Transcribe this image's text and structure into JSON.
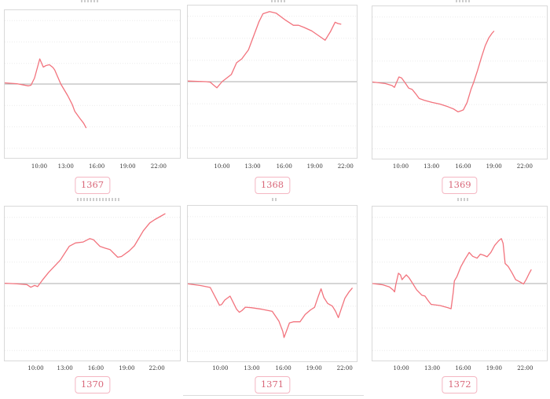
{
  "page": {
    "background": "#ffffff",
    "note": "grid of six mini time-series charts, each with an id badge below; chart titles above plots are rendered too small to be legible",
    "illegible_titles": true
  },
  "colors": {
    "line": "#f2737d",
    "zero_line": "#adadad",
    "grid": "#ececec",
    "plot_border": "#d9d9d9",
    "tick_text": "#333333",
    "badge_text": "#d9687a",
    "badge_border": "#f4b6c2",
    "title_smudge": "#c4c4c4",
    "divider": "#dcdcdc",
    "page_bg": "#ffffff"
  },
  "chart_data": [
    {
      "type": "line",
      "label": "1367",
      "x_tick_labels": [
        "10:00",
        "13:00",
        "16:00",
        "19:00",
        "22:00"
      ],
      "x_tick_pos_pct": [
        20,
        35,
        52.5,
        70,
        87.5
      ],
      "ylabel": "",
      "baseline_value": 0,
      "grid": "horizontal-dotted",
      "points": [
        [
          0,
          0.8
        ],
        [
          7,
          0.2
        ],
        [
          13.5,
          -1.2
        ],
        [
          15,
          -0.8
        ],
        [
          17,
          4
        ],
        [
          20,
          17
        ],
        [
          22,
          11.5
        ],
        [
          23.5,
          12.5
        ],
        [
          25.5,
          13.1
        ],
        [
          27.5,
          11.2
        ],
        [
          28.5,
          9.6
        ],
        [
          32,
          0
        ],
        [
          36,
          -8
        ],
        [
          38.5,
          -13.8
        ],
        [
          40,
          -18.5
        ],
        [
          42.7,
          -22.9
        ],
        [
          45,
          -26.5
        ],
        [
          46.4,
          -29.6
        ]
      ]
    },
    {
      "type": "line",
      "label": "1368",
      "x_tick_labels": [
        "10:00",
        "13:00",
        "16:00",
        "19:00",
        "22:00"
      ],
      "x_tick_pos_pct": [
        20.5,
        38.5,
        57,
        75,
        93
      ],
      "ylabel": "",
      "baseline_value": 0,
      "grid": "horizontal-dotted",
      "points": [
        [
          0,
          0.4
        ],
        [
          11,
          0
        ],
        [
          13.3,
          -0.3
        ],
        [
          15,
          -2
        ],
        [
          17.2,
          -4
        ],
        [
          20.3,
          0
        ],
        [
          25.8,
          4.8
        ],
        [
          28.9,
          12.4
        ],
        [
          32,
          15
        ],
        [
          35.9,
          20.9
        ],
        [
          42.2,
          39.5
        ],
        [
          44.5,
          44.6
        ],
        [
          48.4,
          46
        ],
        [
          52.3,
          45
        ],
        [
          57.8,
          40.4
        ],
        [
          62.5,
          37
        ],
        [
          65.6,
          37
        ],
        [
          68.8,
          35.6
        ],
        [
          73.4,
          33.3
        ],
        [
          78.1,
          29.7
        ],
        [
          81.3,
          27.2
        ],
        [
          84.4,
          32.8
        ],
        [
          87.2,
          39
        ],
        [
          88.8,
          38.2
        ],
        [
          90.6,
          37.8
        ]
      ]
    },
    {
      "type": "line",
      "label": "1369",
      "x_tick_labels": [
        "10:00",
        "13:00",
        "16:00",
        "19:00",
        "22:00"
      ],
      "x_tick_pos_pct": [
        16.5,
        34,
        52,
        69.5,
        87
      ],
      "ylabel": "",
      "baseline_value": 0,
      "grid": "horizontal-dotted",
      "points": [
        [
          0,
          0.3
        ],
        [
          7.4,
          -0.7
        ],
        [
          11.2,
          -2
        ],
        [
          12.6,
          -3.2
        ],
        [
          13.4,
          -1.2
        ],
        [
          15.2,
          3.6
        ],
        [
          16.7,
          3
        ],
        [
          18.6,
          0
        ],
        [
          20.8,
          -3.7
        ],
        [
          22.8,
          -4.6
        ],
        [
          24.6,
          -7.1
        ],
        [
          26.8,
          -10.5
        ],
        [
          29.8,
          -11.7
        ],
        [
          34.2,
          -13.1
        ],
        [
          38.7,
          -14.2
        ],
        [
          43.2,
          -15.9
        ],
        [
          46.4,
          -17.3
        ],
        [
          49.1,
          -19.3
        ],
        [
          50.6,
          -18.7
        ],
        [
          52.1,
          -18
        ],
        [
          54.3,
          -13.1
        ],
        [
          56.5,
          -4.6
        ],
        [
          58,
          0
        ],
        [
          60.3,
          8.1
        ],
        [
          62.5,
          16.6
        ],
        [
          64.7,
          24.2
        ],
        [
          66.7,
          29.3
        ],
        [
          68.5,
          32.2
        ],
        [
          69.6,
          33.6
        ]
      ]
    },
    {
      "type": "line",
      "label": "1370",
      "x_tick_labels": [
        "10:00",
        "13:00",
        "16:00",
        "19:00",
        "22:00"
      ],
      "x_tick_pos_pct": [
        18,
        34.5,
        52,
        69.5,
        86.5
      ],
      "ylabel": "",
      "baseline_value": 0,
      "grid": "horizontal-dotted",
      "points": [
        [
          0,
          0.2
        ],
        [
          7,
          -0.2
        ],
        [
          12.7,
          -0.7
        ],
        [
          14.9,
          -2.4
        ],
        [
          17.1,
          -1.2
        ],
        [
          18.8,
          -2
        ],
        [
          21.5,
          2.2
        ],
        [
          25.1,
          7.3
        ],
        [
          31.7,
          15.2
        ],
        [
          36.8,
          24.2
        ],
        [
          40.4,
          26.4
        ],
        [
          44.8,
          27
        ],
        [
          48.5,
          29.2
        ],
        [
          50.7,
          28.4
        ],
        [
          54.3,
          24.2
        ],
        [
          57.2,
          23
        ],
        [
          60.1,
          22.1
        ],
        [
          64.5,
          17.1
        ],
        [
          66.7,
          17.6
        ],
        [
          71.1,
          21.3
        ],
        [
          74,
          24.5
        ],
        [
          79.1,
          34.3
        ],
        [
          82.8,
          39.4
        ],
        [
          85.7,
          41.6
        ],
        [
          89.3,
          43.9
        ],
        [
          91.5,
          45.3
        ]
      ]
    },
    {
      "type": "line",
      "label": "1371",
      "x_tick_labels": [
        "10:00",
        "13:00",
        "16:00",
        "19:00",
        "22:00"
      ],
      "x_tick_pos_pct": [
        19.5,
        38,
        56.5,
        74.5,
        92.5
      ],
      "ylabel": "",
      "baseline_value": 0,
      "grid": "horizontal-dotted",
      "points": [
        [
          0,
          -0.2
        ],
        [
          7.8,
          -1.3
        ],
        [
          13.3,
          -2.5
        ],
        [
          18.8,
          -14
        ],
        [
          20,
          -13.5
        ],
        [
          21.9,
          -10.6
        ],
        [
          25,
          -8.1
        ],
        [
          28.9,
          -16.5
        ],
        [
          30.5,
          -18.5
        ],
        [
          32,
          -17.4
        ],
        [
          34.1,
          -15.2
        ],
        [
          37.5,
          -15.5
        ],
        [
          43.8,
          -16.5
        ],
        [
          50,
          -17.9
        ],
        [
          53.9,
          -24.1
        ],
        [
          56.3,
          -30.9
        ],
        [
          57,
          -34.7
        ],
        [
          58.6,
          -30
        ],
        [
          60.2,
          -25.3
        ],
        [
          62.5,
          -24.6
        ],
        [
          66.4,
          -24.6
        ],
        [
          69.5,
          -19.9
        ],
        [
          72.7,
          -16.9
        ],
        [
          75,
          -15.3
        ],
        [
          77.3,
          -8.1
        ],
        [
          78.9,
          -3.4
        ],
        [
          80.5,
          -8.9
        ],
        [
          82.8,
          -12.8
        ],
        [
          85.6,
          -14.5
        ],
        [
          87.5,
          -17.9
        ],
        [
          89.1,
          -21.9
        ],
        [
          90.9,
          -16.2
        ],
        [
          93,
          -9.4
        ],
        [
          95.3,
          -5.6
        ],
        [
          97.3,
          -3
        ]
      ]
    },
    {
      "type": "line",
      "label": "1372",
      "x_tick_labels": [
        "10:00",
        "13:00",
        "16:00",
        "19:00",
        "22:00"
      ],
      "x_tick_pos_pct": [
        16.8,
        34.4,
        52,
        69.6,
        87.2
      ],
      "ylabel": "",
      "baseline_value": 0,
      "grid": "horizontal-dotted",
      "points": [
        [
          0,
          0
        ],
        [
          6,
          -0.8
        ],
        [
          9.7,
          -2.2
        ],
        [
          11.9,
          -4.2
        ],
        [
          12.7,
          -5.4
        ],
        [
          13.4,
          -0.8
        ],
        [
          14.9,
          6.7
        ],
        [
          16.1,
          5.6
        ],
        [
          17,
          2.5
        ],
        [
          17.9,
          3.7
        ],
        [
          19.4,
          5.6
        ],
        [
          20.9,
          3.9
        ],
        [
          23.1,
          0
        ],
        [
          25.4,
          -4.2
        ],
        [
          28.4,
          -7.6
        ],
        [
          30.1,
          -8.1
        ],
        [
          31.6,
          -10.6
        ],
        [
          33.6,
          -13.5
        ],
        [
          38.8,
          -14.3
        ],
        [
          43.3,
          -15.7
        ],
        [
          45.1,
          -16.4
        ],
        [
          46.3,
          -5.9
        ],
        [
          47,
          1.7
        ],
        [
          48.5,
          4.7
        ],
        [
          50.7,
          11
        ],
        [
          53,
          15.7
        ],
        [
          55.5,
          20.2
        ],
        [
          57.5,
          17.7
        ],
        [
          60,
          16.5
        ],
        [
          61.9,
          19.1
        ],
        [
          63.7,
          18.4
        ],
        [
          65.7,
          17.4
        ],
        [
          67.9,
          20.2
        ],
        [
          70.1,
          24.8
        ],
        [
          72.4,
          27.8
        ],
        [
          73.9,
          29.2
        ],
        [
          74.9,
          26.1
        ],
        [
          76.1,
          13
        ],
        [
          77.9,
          11
        ],
        [
          79.9,
          7.2
        ],
        [
          82.1,
          2.5
        ],
        [
          84.3,
          1.2
        ],
        [
          86.6,
          -0.3
        ],
        [
          88.1,
          2.5
        ],
        [
          89.9,
          6.7
        ],
        [
          91,
          8.9
        ]
      ]
    }
  ]
}
